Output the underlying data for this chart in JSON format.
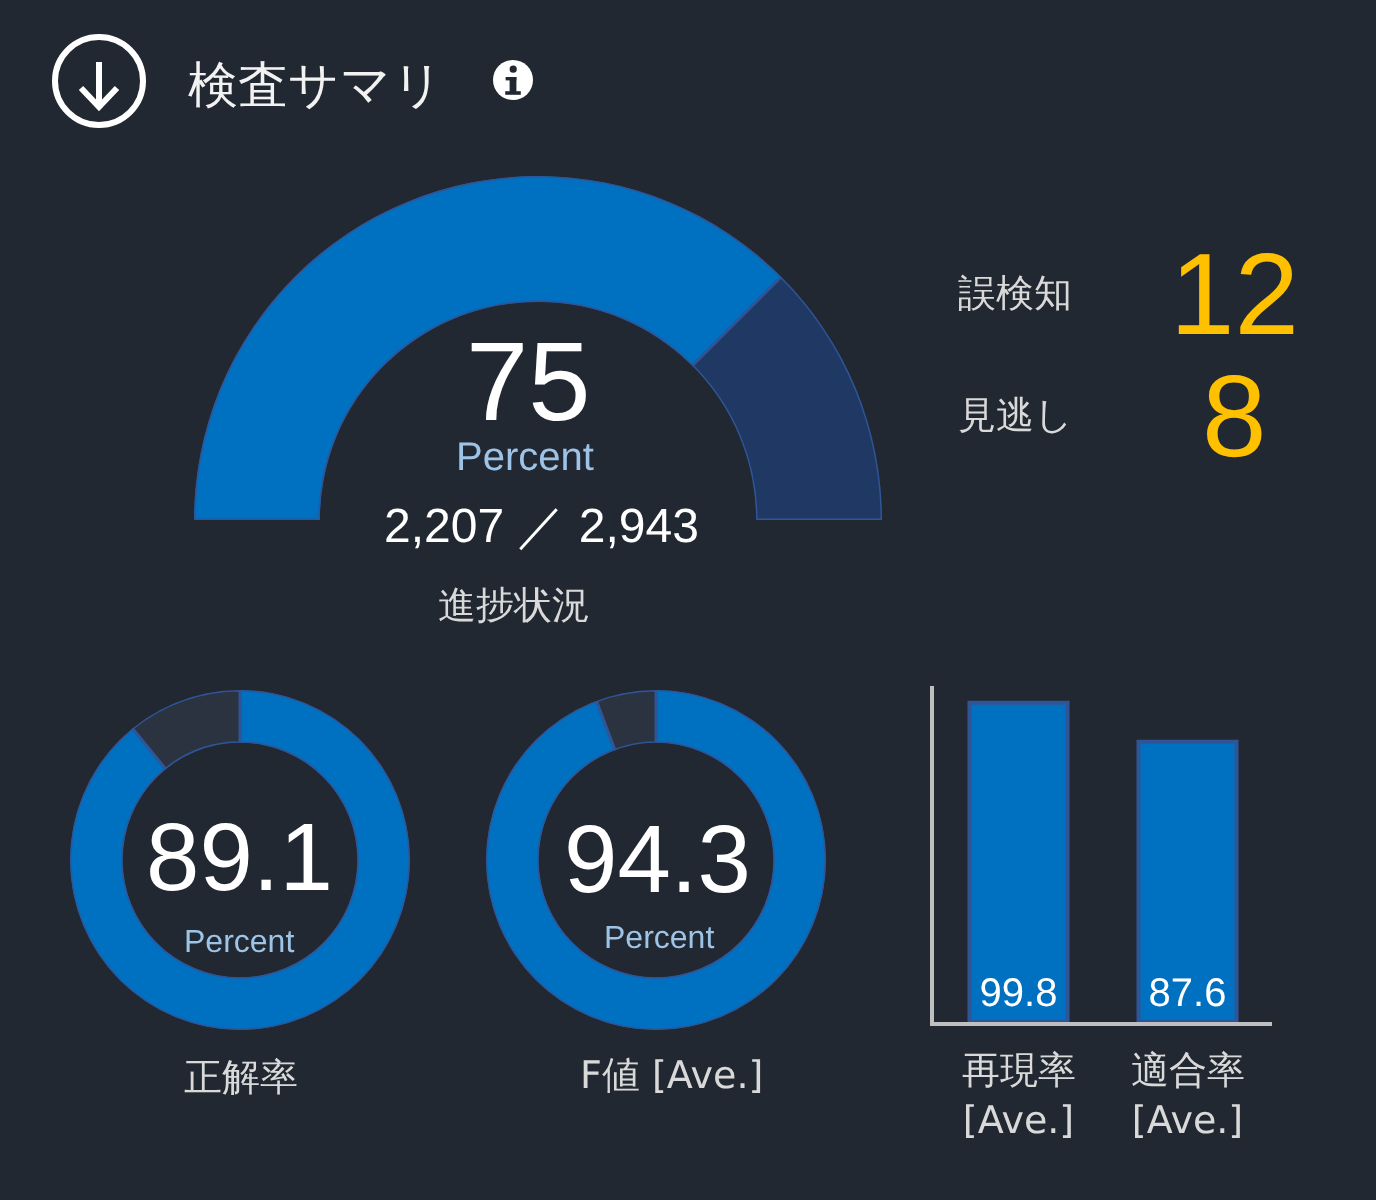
{
  "chart_data": [
    {
      "type": "donut",
      "title": "検査サマリ",
      "values": [
        75,
        25
      ],
      "colors": [
        "#0070c0",
        "#1f3864"
      ],
      "value_labels": [
        "75",
        null
      ],
      "annotations": [
        "Percent",
        "2,207 ／ 2,943"
      ],
      "xlabel": "進捗状況"
    },
    {
      "type": "other",
      "categories": [
        "誤検知",
        "見逃し"
      ],
      "values": [
        12,
        8
      ],
      "color": "#ffc000",
      "data_labels": true
    },
    {
      "type": "donut",
      "values": [
        89.1,
        10.9
      ],
      "colors": [
        "#0070c0",
        "#2b3341"
      ],
      "value_labels": [
        "89.1",
        null
      ],
      "annotations": [
        "Percent"
      ],
      "xlabel": "正解率"
    },
    {
      "type": "donut",
      "values": [
        94.3,
        5.7
      ],
      "colors": [
        "#0070c0",
        "#2b3341"
      ],
      "value_labels": [
        "94.3",
        null
      ],
      "annotations": [
        "Percent"
      ],
      "xlabel": "F値 [Ave.]"
    },
    {
      "type": "bar",
      "categories": [
        "再現率 [Ave.]",
        "適合率 [Ave.]"
      ],
      "values": [
        99.8,
        87.6
      ],
      "color": "#0070c0",
      "data_labels": true,
      "tick_labels": "x"
    }
  ]
}
